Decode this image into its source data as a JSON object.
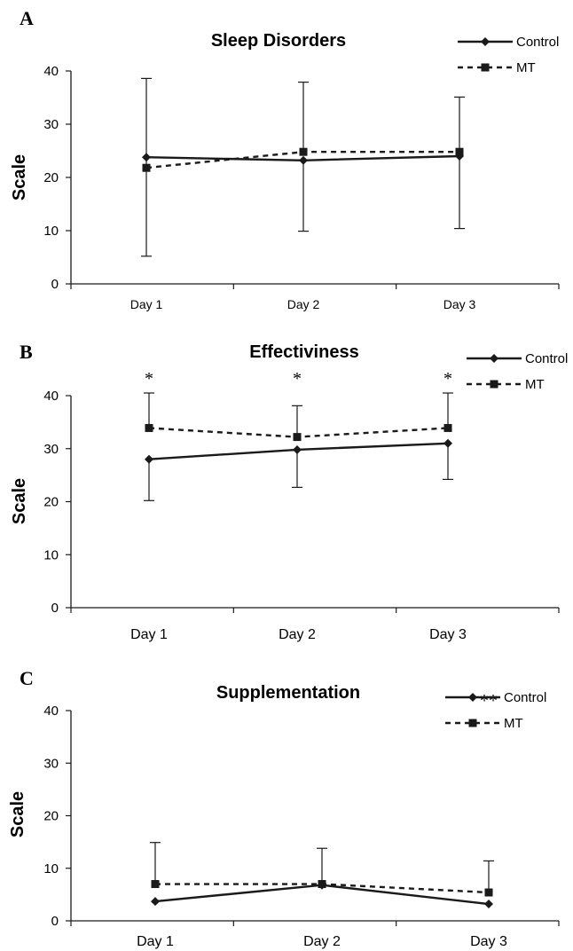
{
  "colors": {
    "line": "#1a1a1a",
    "text": "#000000",
    "background": "#ffffff"
  },
  "chart_data": [
    {
      "type": "line",
      "panel_label": "A",
      "title": "Sleep Disorders",
      "ylabel": "Scale",
      "xlabel": "",
      "ylim": [
        0,
        40
      ],
      "yticks": [
        "0",
        "10",
        "20",
        "30",
        "40"
      ],
      "categories": [
        "Day 1",
        "Day 2",
        "Day 3"
      ],
      "legend_position": "top-right",
      "grid": false,
      "series": [
        {
          "name": "Control",
          "marker": "diamond",
          "line_style": "solid",
          "values": [
            23.8,
            23.2,
            24.0
          ],
          "error_lower": [
            5.2,
            9.9,
            10.4
          ],
          "error_upper": [
            38.6,
            0,
            0
          ]
        },
        {
          "name": "MT",
          "marker": "square",
          "line_style": "dashed",
          "values": [
            21.8,
            24.8,
            24.8
          ],
          "error_lower": [
            0,
            0,
            0
          ],
          "error_upper": [
            0,
            37.9,
            35.1
          ]
        }
      ],
      "annotations": [
        "",
        "",
        ""
      ]
    },
    {
      "type": "line",
      "panel_label": "B",
      "title": "Effectiviness",
      "ylabel": "Scale",
      "xlabel": "",
      "ylim": [
        0,
        40
      ],
      "yticks": [
        "0",
        "10",
        "20",
        "30",
        "40"
      ],
      "categories": [
        "Day 1",
        "Day 2",
        "Day 3"
      ],
      "legend_position": "top-right",
      "grid": false,
      "series": [
        {
          "name": "Control",
          "marker": "diamond",
          "line_style": "solid",
          "values": [
            28.0,
            29.8,
            31.0
          ],
          "error_lower": [
            20.2,
            22.7,
            24.2
          ],
          "error_upper": [
            0,
            0,
            0
          ]
        },
        {
          "name": "MT",
          "marker": "square",
          "line_style": "dashed",
          "values": [
            33.9,
            32.2,
            33.9
          ],
          "error_lower": [
            0,
            0,
            0
          ],
          "error_upper": [
            40.5,
            38.1,
            40.5
          ]
        }
      ],
      "annotations": [
        "*",
        "*",
        "*"
      ]
    },
    {
      "type": "line",
      "panel_label": "C",
      "title": "Supplementation",
      "ylabel": "Scale",
      "xlabel": "",
      "ylim": [
        0,
        40
      ],
      "yticks": [
        "0",
        "10",
        "20",
        "30",
        "40"
      ],
      "categories": [
        "Day 1",
        "Day 2",
        "Day 3"
      ],
      "legend_position": "top-right",
      "grid": false,
      "series": [
        {
          "name": "Control",
          "marker": "diamond",
          "line_style": "solid",
          "values": [
            3.7,
            6.8,
            3.2
          ],
          "error_lower": [
            0,
            0,
            0
          ],
          "error_upper": [
            0,
            0,
            0
          ]
        },
        {
          "name": "MT",
          "marker": "square",
          "line_style": "dashed",
          "values": [
            7.0,
            7.0,
            5.4
          ],
          "error_lower": [
            0,
            0,
            0
          ],
          "error_upper": [
            14.9,
            13.8,
            11.4
          ]
        }
      ],
      "annotations": [
        "",
        "",
        "**"
      ]
    }
  ]
}
